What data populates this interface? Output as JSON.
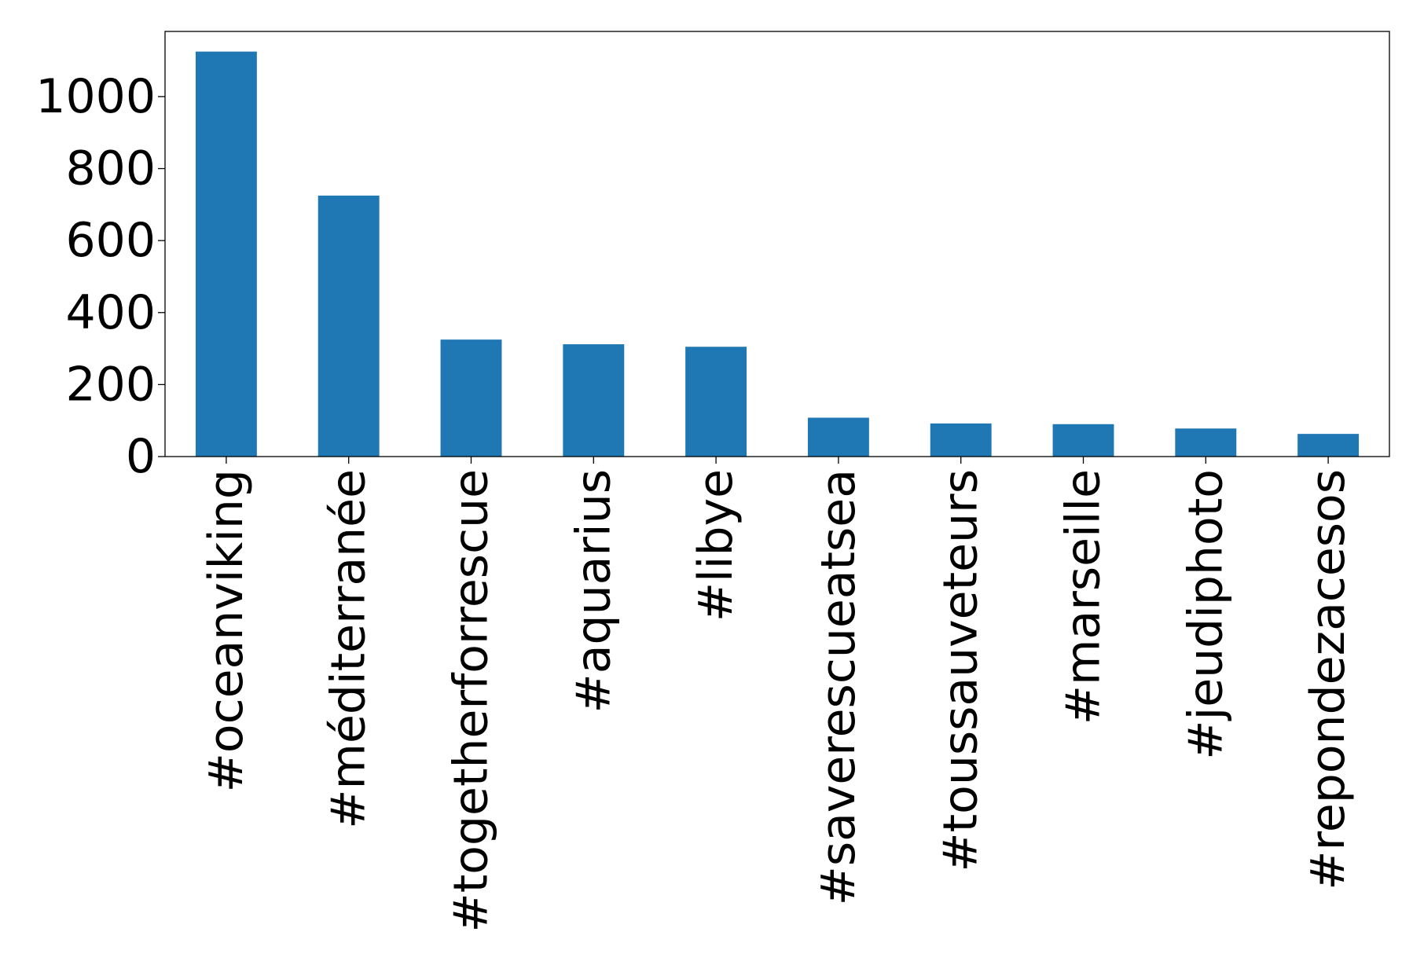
{
  "chart_data": {
    "type": "bar",
    "categories": [
      "#oceanviking",
      "#méditerranée",
      "#togetherforrescue",
      "#aquarius",
      "#libye",
      "#saverescueatsea",
      "#toussauveteurs",
      "#marseille",
      "#jeudiphoto",
      "#repondezacesos"
    ],
    "values": [
      1125,
      725,
      325,
      312,
      305,
      108,
      92,
      90,
      78,
      63
    ],
    "yticks": [
      0,
      200,
      400,
      600,
      800,
      1000
    ],
    "ylim": [
      0,
      1181
    ],
    "grid": false,
    "legend": "none",
    "bar_color": "#1f77b4",
    "title": "",
    "xlabel": "",
    "ylabel": ""
  }
}
